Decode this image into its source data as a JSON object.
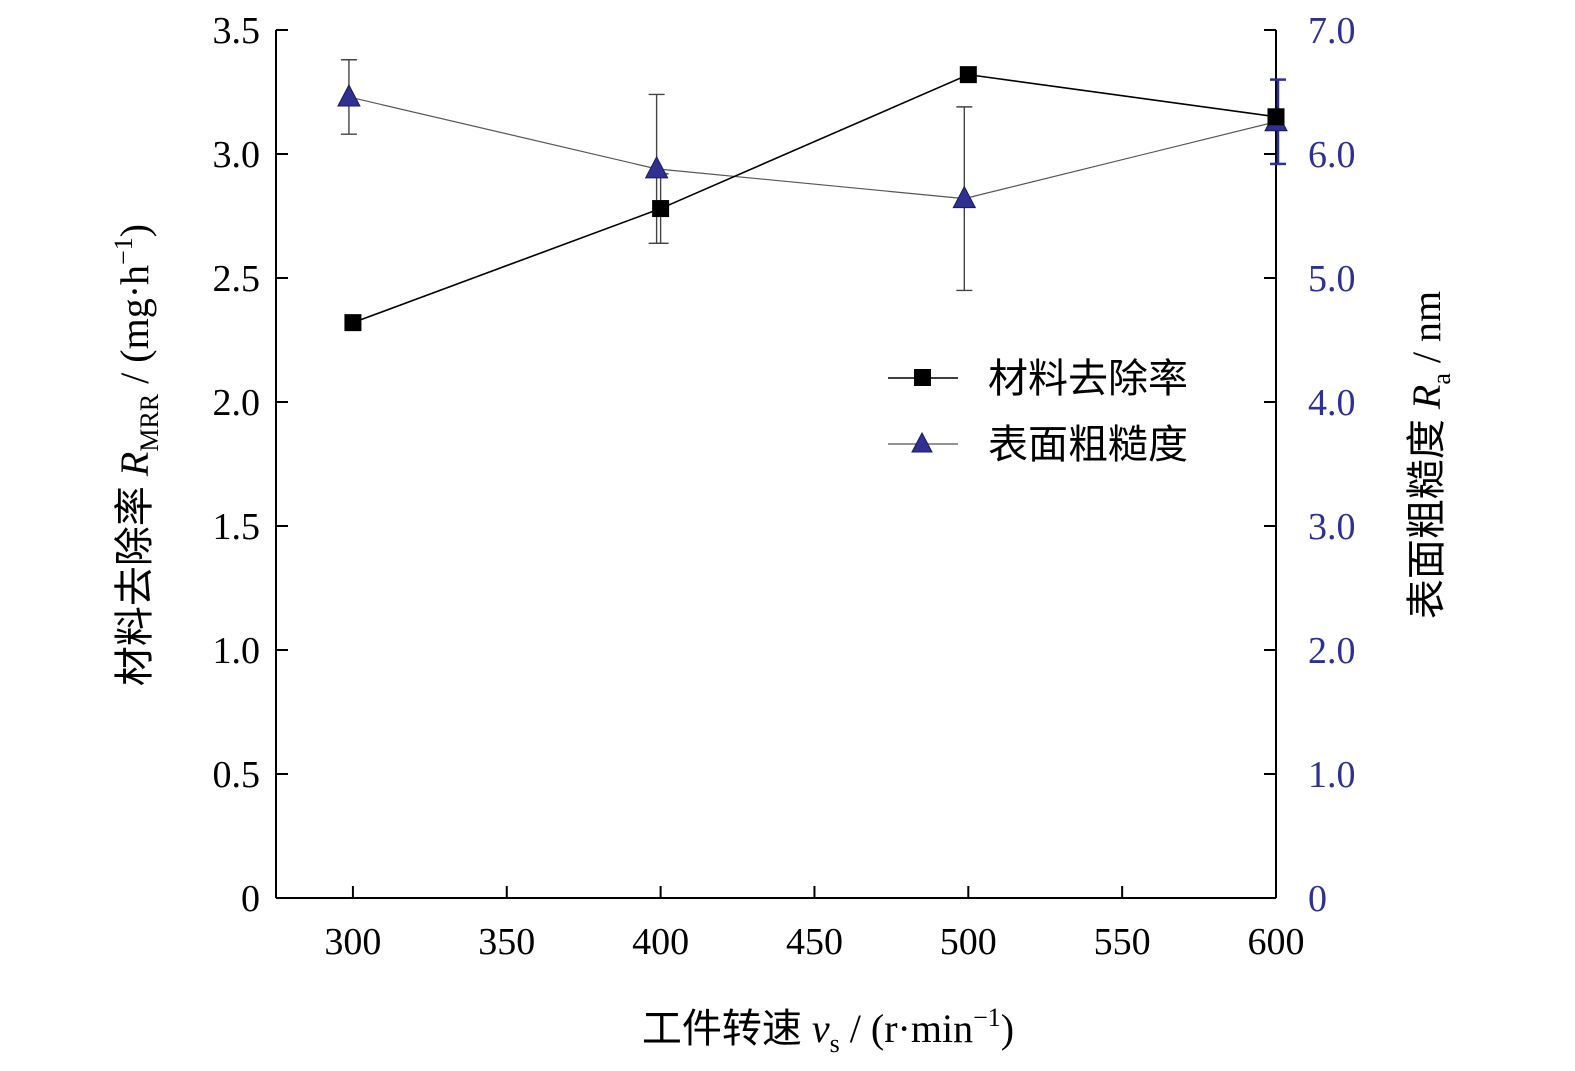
{
  "colors": {
    "mrr": "#000000",
    "ra": "#2e3192",
    "axis": "#000000",
    "right_axis": "#2e3192",
    "errorbar": "#444444"
  },
  "chart_data": {
    "type": "line",
    "x": [
      300,
      400,
      500,
      600
    ],
    "xlim": [
      275,
      600
    ],
    "xticks": [
      300,
      350,
      400,
      450,
      500,
      550,
      600
    ],
    "xticklabels": [
      "300",
      "350",
      "400",
      "450",
      "500",
      "550",
      "600"
    ],
    "x_title": {
      "prefix": "工件转速 ",
      "var": "v",
      "sub": "s",
      "units_pre": " / (r·min",
      "sup": "−1",
      "units_post": ")"
    },
    "y_left": {
      "lim": [
        0,
        3.5
      ],
      "ticks": [
        0,
        0.5,
        1.0,
        1.5,
        2.0,
        2.5,
        3.0,
        3.5
      ],
      "ticklabels": [
        "0",
        "0.5",
        "1.0",
        "1.5",
        "2.0",
        "2.5",
        "3.0",
        "3.5"
      ],
      "title": {
        "prefix": "材料去除率 ",
        "var": "R",
        "sub": "MRR",
        "units_pre": " / (mg·h",
        "sup": "−1",
        "units_post": ")"
      }
    },
    "y_right": {
      "lim": [
        0,
        7.0
      ],
      "ticks": [
        0,
        1.0,
        2.0,
        3.0,
        4.0,
        5.0,
        6.0,
        7.0
      ],
      "ticklabels": [
        "0",
        "1.0",
        "2.0",
        "3.0",
        "4.0",
        "5.0",
        "6.0",
        "7.0"
      ],
      "title": {
        "prefix": "表面粗糙度 ",
        "var": "R",
        "sub": "a",
        "units": " / nm"
      }
    },
    "series": [
      {
        "name": "材料去除率",
        "axis": "left",
        "marker": "square",
        "values": [
          2.32,
          2.78,
          3.32,
          3.15
        ],
        "error": [
          null,
          0.14,
          null,
          null
        ]
      },
      {
        "name": "表面粗糙度",
        "axis": "right",
        "marker": "triangle",
        "values": [
          6.46,
          5.88,
          5.64,
          6.26
        ],
        "error": [
          0.3,
          0.6,
          0.74,
          0.34
        ]
      }
    ],
    "legend_position": "center-right"
  }
}
